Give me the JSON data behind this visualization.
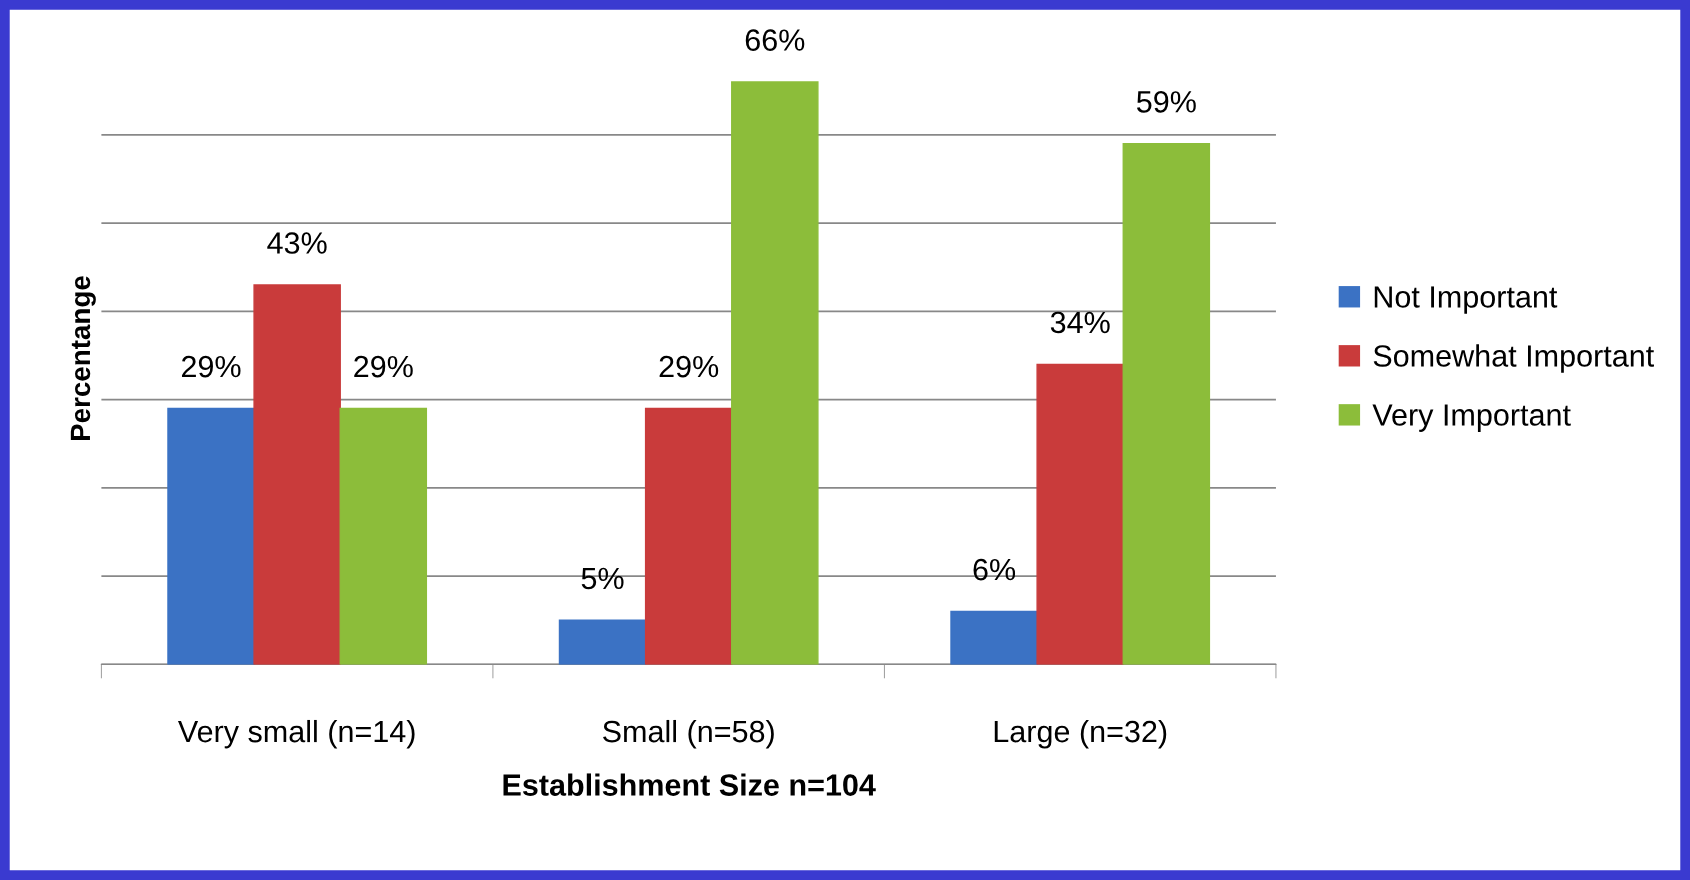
{
  "chart_data": {
    "type": "bar",
    "xlabel": "Establishment Size n=104",
    "ylabel": "Percentange",
    "categories": [
      "Very small (n=14)",
      "Small (n=58)",
      "Large (n=32)"
    ],
    "series": [
      {
        "name": "Not Important",
        "color": "#3b72c4",
        "values": [
          29,
          5,
          6
        ],
        "value_labels": [
          "29%",
          "5%",
          "6%"
        ]
      },
      {
        "name": "Somewhat Important",
        "color": "#c93b3b",
        "values": [
          43,
          29,
          34
        ],
        "value_labels": [
          "43%",
          "29%",
          "34%"
        ]
      },
      {
        "name": "Very Important",
        "color": "#8cbd3a",
        "values": [
          29,
          66,
          59
        ],
        "value_labels": [
          "29%",
          "66%",
          "59%"
        ]
      }
    ],
    "tick_labels": "x",
    "grid": "y",
    "legend": "right"
  }
}
